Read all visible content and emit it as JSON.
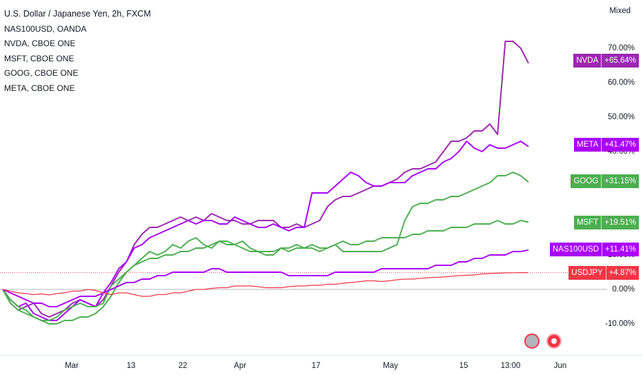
{
  "legend": [
    "U.S. Dollar / Japanese Yen, 2h, FXCM",
    "NAS100USD, OANDA",
    "NVDA, CBOE ONE",
    "MSFT, CBOE ONE",
    "GOOG, CBOE ONE",
    "META, CBOE ONE"
  ],
  "scale_mode": "Mixed",
  "icons": [
    "flag-circle-icon",
    "record-circle-icon"
  ],
  "chart_data": {
    "type": "line",
    "x_ticks": [
      "Mar",
      "13",
      "22",
      "Apr",
      "17",
      "May",
      "15",
      "13:00",
      "Jun"
    ],
    "y_ticks": [
      "70.00%",
      "60.00%",
      "50.00%",
      "40.00%",
      "30.00%",
      "20.00%",
      "10.00%",
      "0.00%",
      "-10.00%"
    ],
    "ylim": [
      -16,
      76
    ],
    "series": [
      {
        "name": "NVDA",
        "change": "+65.64%",
        "color": "#9c27b0",
        "values": [
          0,
          -4,
          -6,
          -5,
          -4,
          -7,
          -8,
          -7,
          -6,
          -4,
          -3,
          -4,
          -5,
          -3,
          1,
          5,
          8,
          13,
          16,
          18,
          18,
          19,
          20,
          21,
          20,
          21,
          20,
          22,
          21,
          20,
          20,
          19,
          19,
          20,
          20,
          20,
          18,
          18,
          19,
          18,
          19,
          20,
          24,
          26,
          27,
          27,
          28,
          29,
          30,
          30,
          31,
          32,
          34,
          35,
          35,
          36,
          37,
          40,
          43,
          43,
          44,
          46,
          46,
          48,
          45,
          72,
          72,
          70,
          65.64
        ]
      },
      {
        "name": "META",
        "change": "+41.47%",
        "color": "#aa00ff",
        "values": [
          0,
          -3,
          -5,
          -4,
          -7,
          -8,
          -9,
          -9,
          -7,
          -5,
          -3,
          -4,
          -5,
          -1,
          2,
          6,
          8,
          12,
          13,
          15,
          16,
          17,
          18,
          19,
          20,
          19,
          20,
          20,
          19,
          19,
          21,
          20,
          19,
          18,
          18,
          19,
          18,
          17,
          18,
          18,
          28,
          28,
          28,
          30,
          32,
          34,
          33,
          31,
          30,
          30,
          31,
          31,
          31,
          33,
          34,
          35,
          35,
          37,
          38,
          40,
          43,
          41,
          40,
          42,
          41,
          41,
          42,
          43,
          41.47
        ]
      },
      {
        "name": "GOOG",
        "change": "+31.15%",
        "color": "#4caf50",
        "values": [
          0,
          -3,
          -5,
          -6,
          -8,
          -9,
          -9,
          -8,
          -6,
          -5,
          -4,
          -5,
          -5,
          -4,
          1,
          3,
          5,
          7,
          9,
          11,
          10,
          11,
          13,
          12,
          14,
          15,
          13,
          12,
          14,
          14,
          13,
          12,
          11,
          11,
          10,
          10,
          12,
          11,
          12,
          12,
          12,
          11,
          12,
          13,
          11,
          11,
          11,
          11,
          11,
          11,
          12,
          13,
          20,
          24,
          25,
          25,
          26,
          26,
          27,
          27,
          28,
          29,
          30,
          31,
          33,
          33,
          34,
          33,
          31.15
        ]
      },
      {
        "name": "MSFT",
        "change": "+19.51%",
        "color": "#4caf50",
        "values": [
          0,
          -4,
          -6,
          -7,
          -8,
          -9,
          -10,
          -10,
          -9,
          -9,
          -8,
          -8,
          -7,
          -5,
          -2,
          2,
          5,
          7,
          8,
          9,
          9,
          10,
          10,
          11,
          11,
          12,
          12,
          13,
          14,
          13,
          13,
          14,
          12,
          11,
          11,
          11,
          12,
          12,
          13,
          12,
          13,
          12,
          12,
          13,
          14,
          13,
          13,
          14,
          14,
          15,
          15,
          15,
          15,
          16,
          16,
          17,
          17,
          17,
          18,
          18,
          18,
          19,
          19,
          19,
          20,
          19,
          19,
          20,
          19.51
        ]
      },
      {
        "name": "NAS100USD",
        "change": "+11.41%",
        "color": "#aa00ff",
        "values": [
          0,
          -1,
          -2,
          -3,
          -4,
          -4,
          -5,
          -5,
          -4,
          -3,
          -2,
          -2,
          -2,
          -1,
          0,
          1,
          2,
          2,
          3,
          3,
          4,
          4,
          5,
          5,
          5,
          5,
          5,
          6,
          6,
          5,
          5,
          5,
          5,
          5,
          5,
          5,
          5,
          4,
          4,
          4,
          4,
          4,
          4,
          5,
          5,
          5,
          5,
          5,
          5,
          6,
          6,
          6,
          6,
          6,
          6,
          6,
          7,
          7,
          7,
          8,
          8,
          9,
          9,
          10,
          10,
          10,
          11,
          11,
          11.41
        ]
      },
      {
        "name": "USDJPY",
        "change": "+4.87%",
        "color": "#f23645",
        "values": [
          0,
          -0.5,
          -1,
          -1.2,
          -1.5,
          -1.3,
          -1.6,
          -1.2,
          -1,
          -0.5,
          -0.5,
          0,
          -0.3,
          -1,
          -1.5,
          -1,
          -1,
          -1.5,
          -2,
          -2,
          -1.5,
          -1.5,
          -1,
          -1,
          -0.5,
          0,
          0,
          0.3,
          0.5,
          0.5,
          1,
          1,
          1,
          0.8,
          0.5,
          0.5,
          0.5,
          0.8,
          1,
          1,
          1.2,
          1.2,
          1.5,
          1.5,
          1.8,
          2,
          2.2,
          2.5,
          2.5,
          2.3,
          2.5,
          2.8,
          3,
          3,
          3.2,
          3.4,
          3.5,
          3.6,
          3.8,
          4,
          4.1,
          4.2,
          4.5,
          4.6,
          4.7,
          4.8,
          4.85,
          4.87,
          4.87
        ]
      }
    ]
  }
}
